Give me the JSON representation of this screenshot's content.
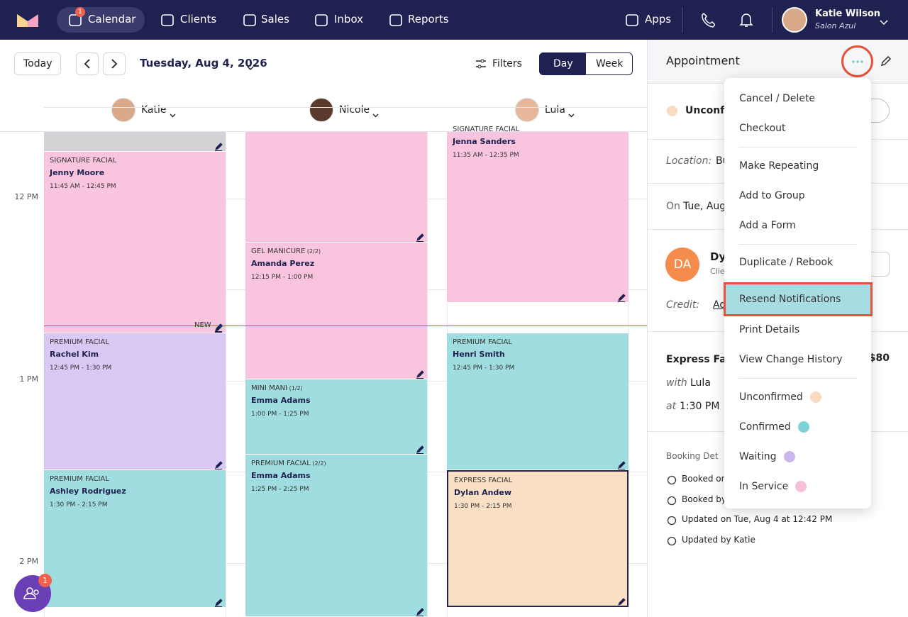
{
  "nav": {
    "badge": "1",
    "items": [
      "Calendar",
      "Clients",
      "Sales",
      "Inbox",
      "Reports",
      "Apps"
    ],
    "user": {
      "name": "Katie Wilson",
      "salon": "Salon Azul"
    }
  },
  "toolbar": {
    "today": "Today",
    "date": "Tuesday, Aug 4, 2026",
    "filters": "Filters",
    "views": [
      "Day",
      "Week"
    ]
  },
  "staff": [
    "Katie",
    "Nicole",
    "Lula"
  ],
  "times": [
    "12 PM",
    "1 PM",
    "2 PM"
  ],
  "now_label": "NEW",
  "appointments": [
    {
      "service": "SIGNATURE FACIAL",
      "client": "Jenny Moore",
      "time": "11:45 AM - 12:45 PM"
    },
    {
      "service": "PREMIUM FACIAL",
      "client": "Rachel Kim",
      "time": "12:45 PM - 1:30 PM"
    },
    {
      "service": "PREMIUM FACIAL",
      "client": "Ashley Rodriguez",
      "time": "1:30 PM - 2:15 PM"
    },
    {
      "service": "GEL MANICURE",
      "qty": "(2/2)",
      "client": "Amanda Perez",
      "time": "12:15 PM - 1:00 PM"
    },
    {
      "service": "MINI MANI",
      "qty": "(1/2)",
      "client": "Emma Adams",
      "time": "1:00 PM - 1:25 PM"
    },
    {
      "service": "PREMIUM FACIAL",
      "qty": "(2/2)",
      "client": "Emma Adams",
      "time": "1:25 PM - 2:25 PM"
    },
    {
      "service": "SIGNATURE FACIAL",
      "client": "Jenna Sanders",
      "time": "11:35 AM - 12:35 PM"
    },
    {
      "service": "PREMIUM FACIAL",
      "client": "Henri Smith",
      "time": "12:45 PM - 1:30 PM"
    },
    {
      "service": "EXPRESS FACIAL",
      "client": "Dylan Andew",
      "time": "1:30 PM - 2:15 PM"
    }
  ],
  "panel": {
    "title": "Appointment",
    "status": "Unconfi",
    "location_label": "Location:",
    "location": "Bu",
    "date_prefix": "On",
    "date": "Tue, Aug",
    "initials": "DA",
    "client": "Dy",
    "client_sub": "Clie",
    "credit_label": "Credit:",
    "credit": "Ad",
    "service": "Express Fac",
    "price": "$80",
    "with_label": "with",
    "staff": "Lula",
    "at_label": "at",
    "time": "1:30 PM",
    "booking_title": "Booking Det",
    "booking": [
      "Booked on",
      "Booked by",
      "Updated on Tue, Aug 4 at 12:42 PM",
      "Updated by Katie"
    ]
  },
  "menu": {
    "actions": [
      "Cancel / Delete",
      "Checkout",
      "Make Repeating",
      "Add to Group",
      "Add a Form",
      "Duplicate / Rebook",
      "Resend Notifications",
      "Print Details",
      "View Change History"
    ],
    "statuses": [
      {
        "label": "Unconfirmed",
        "color": "#f9dcc0"
      },
      {
        "label": "Confirmed",
        "color": "#7dd3d6"
      },
      {
        "label": "Waiting",
        "color": "#c9b8f0"
      },
      {
        "label": "In Service",
        "color": "#f7bfd8"
      }
    ]
  },
  "fab_badge": "1"
}
